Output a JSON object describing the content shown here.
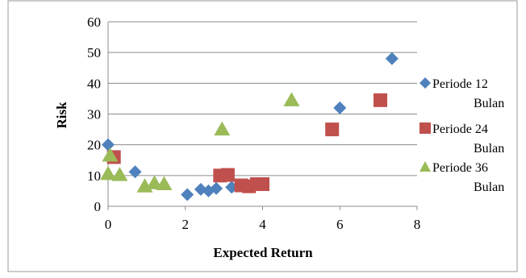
{
  "chart_data": {
    "type": "scatter",
    "xlabel": "Expected Return",
    "ylabel": "Risk",
    "xlim": [
      0,
      8
    ],
    "ylim": [
      0,
      60
    ],
    "xticks": [
      "0",
      "2",
      "4",
      "6",
      "8"
    ],
    "yticks": [
      "0",
      "10",
      "20",
      "30",
      "40",
      "50",
      "60"
    ],
    "grid": "horizontal",
    "legend_position": "right",
    "series": [
      {
        "name": "Periode 12 Bulan",
        "marker": "diamond",
        "color": "#4F81BD",
        "points": [
          [
            0.0,
            20.0
          ],
          [
            0.7,
            11.2
          ],
          [
            2.05,
            3.8
          ],
          [
            2.4,
            5.5
          ],
          [
            2.6,
            5.0
          ],
          [
            2.8,
            5.8
          ],
          [
            3.2,
            6.2
          ],
          [
            6.0,
            32.0
          ],
          [
            7.35,
            48.0
          ]
        ]
      },
      {
        "name": "Periode 24 Bulan",
        "marker": "square",
        "color": "#C0504D",
        "points": [
          [
            0.15,
            16.0
          ],
          [
            2.9,
            10.0
          ],
          [
            3.1,
            10.2
          ],
          [
            3.45,
            6.8
          ],
          [
            3.65,
            6.5
          ],
          [
            3.85,
            7.2
          ],
          [
            4.0,
            7.2
          ],
          [
            5.8,
            25.0
          ],
          [
            7.05,
            34.5
          ]
        ]
      },
      {
        "name": "Periode 36 Bulan",
        "marker": "triangle",
        "color": "#9BBB59",
        "points": [
          [
            0.0,
            10.5
          ],
          [
            0.05,
            16.5
          ],
          [
            0.3,
            10.2
          ],
          [
            0.95,
            6.5
          ],
          [
            1.2,
            7.5
          ],
          [
            1.45,
            7.2
          ],
          [
            2.95,
            25.0
          ],
          [
            4.75,
            34.5
          ]
        ]
      }
    ]
  },
  "legend": [
    {
      "line1": "Periode 12",
      "line2": "Bulan"
    },
    {
      "line1": "Periode 24",
      "line2": "Bulan"
    },
    {
      "line1": "Periode 36",
      "line2": "Bulan"
    }
  ]
}
